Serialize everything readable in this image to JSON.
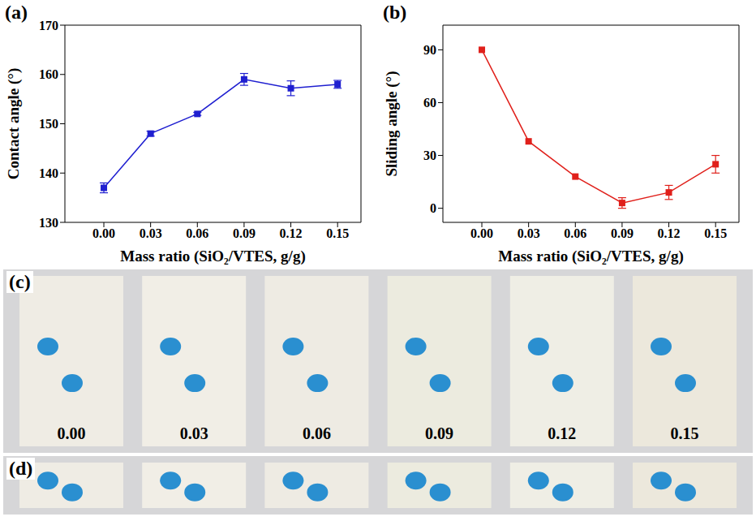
{
  "chart_data": [
    {
      "type": "line",
      "title": "(a)",
      "x_label": "Mass ratio (SiO₂/VTES, g/g)",
      "y_label": "Contact angle (°)",
      "x": [
        0,
        0.03,
        0.06,
        0.09,
        0.12,
        0.15
      ],
      "values": [
        137,
        148,
        152,
        159,
        157.2,
        158
      ],
      "errors": [
        1,
        0.5,
        0.3,
        1.2,
        1.5,
        0.8
      ],
      "color": "#1f1fd0",
      "marker": "square",
      "xlim": [
        -0.025,
        0.165
      ],
      "xticks": [
        {
          "value": 0,
          "label": "0.00"
        },
        {
          "value": 0.03,
          "label": "0.03"
        },
        {
          "value": 0.06,
          "label": "0.06"
        },
        {
          "value": 0.09,
          "label": "0.09"
        },
        {
          "value": 0.12,
          "label": "0.12"
        },
        {
          "value": 0.15,
          "label": "0.15"
        }
      ],
      "ylim": [
        130,
        170
      ],
      "yticks": [
        130,
        140,
        150,
        160,
        170
      ],
      "grid": false
    },
    {
      "type": "line",
      "title": "(b)",
      "x_label": "Mass ratio (SiO₂/VTES, g/g)",
      "y_label": "Sliding angle (°)",
      "x": [
        0,
        0.03,
        0.06,
        0.09,
        0.12,
        0.15
      ],
      "values": [
        90,
        38,
        18,
        3,
        9,
        25
      ],
      "errors": [
        0,
        0,
        0,
        3,
        4,
        5
      ],
      "color": "#e0201b",
      "marker": "square",
      "xlim": [
        -0.025,
        0.165
      ],
      "xticks": [
        {
          "value": 0,
          "label": "0.00"
        },
        {
          "value": 0.03,
          "label": "0.03"
        },
        {
          "value": 0.06,
          "label": "0.06"
        },
        {
          "value": 0.09,
          "label": "0.09"
        },
        {
          "value": 0.12,
          "label": "0.12"
        },
        {
          "value": 0.15,
          "label": "0.15"
        }
      ],
      "ylim": [
        -8,
        104
      ],
      "yticks": [
        0,
        30,
        60,
        90
      ],
      "grid": false
    }
  ],
  "photos": [
    {
      "label": "(c)",
      "captions": [
        "0.00",
        "0.03",
        "0.06",
        "0.09",
        "0.12",
        "0.15"
      ]
    },
    {
      "label": "(d)",
      "captions": []
    }
  ]
}
